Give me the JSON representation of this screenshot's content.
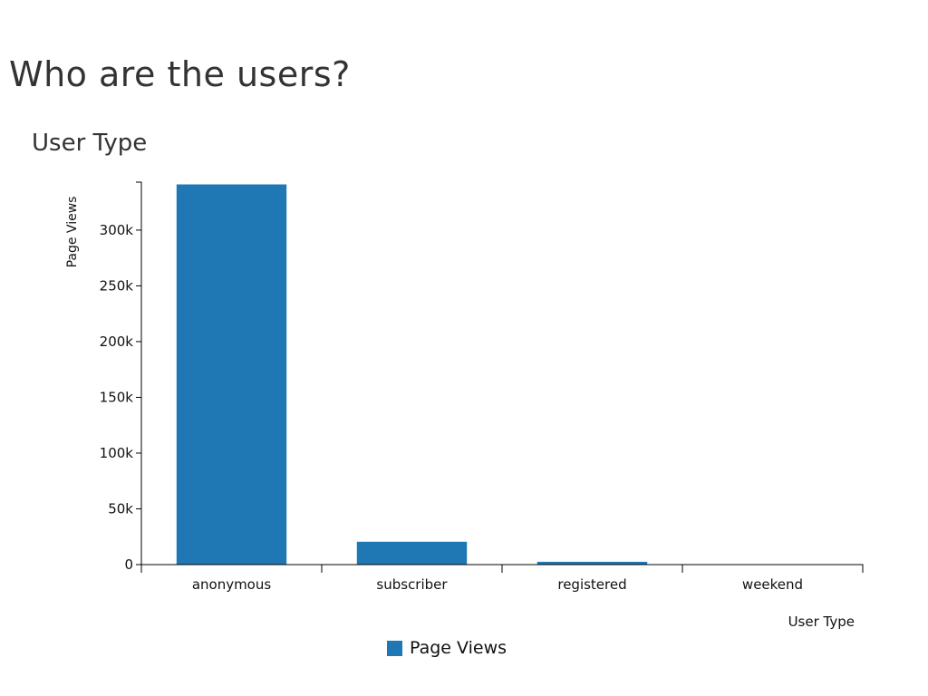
{
  "page": {
    "title": "Who are the users?"
  },
  "chart_data": {
    "type": "bar",
    "title": "User Type",
    "xlabel": "User Type",
    "ylabel": "Page Views",
    "categories": [
      "anonymous",
      "subscriber",
      "registered",
      "weekend"
    ],
    "series": [
      {
        "name": "Page Views",
        "values": [
          341000,
          20500,
          2500,
          0
        ],
        "color": "#1f77b4"
      }
    ],
    "ylim": [
      0,
      343000
    ],
    "yticks": [
      0,
      50000,
      100000,
      150000,
      200000,
      250000,
      300000
    ],
    "ytick_labels": [
      "0",
      "50k",
      "100k",
      "150k",
      "200k",
      "250k",
      "300k"
    ],
    "grid": false,
    "legend_position": "bottom-center"
  }
}
